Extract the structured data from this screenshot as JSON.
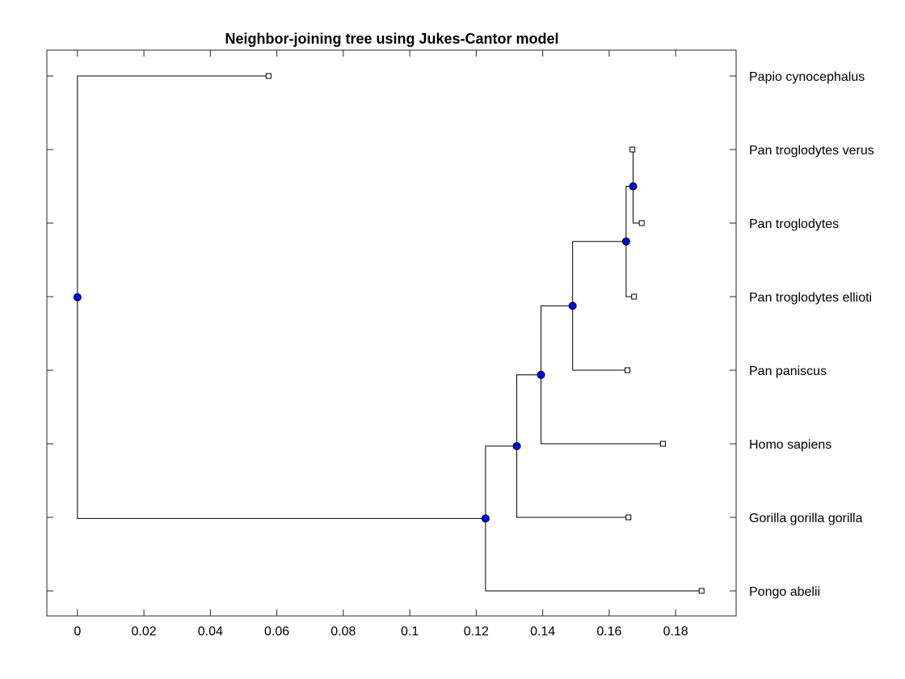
{
  "chart_data": {
    "type": "dendrogram",
    "title": "Neighbor-joining tree using Jukes-Cantor model",
    "xlabel": "",
    "ylabel": "",
    "xlim": [
      -0.0092,
      0.1982
    ],
    "x_ticks": [
      0,
      0.02,
      0.04,
      0.06,
      0.08,
      0.1,
      0.12,
      0.14,
      0.16,
      0.18
    ],
    "x_tick_labels": [
      "0",
      "0.02",
      "0.04",
      "0.06",
      "0.08",
      "0.1",
      "0.12",
      "0.14",
      "0.16",
      "0.18"
    ],
    "grid": false,
    "leaves": [
      {
        "name": "Papio cynocephalus",
        "x": 0.0575
      },
      {
        "name": "Pan troglodytes verus",
        "x": 0.167
      },
      {
        "name": "Pan troglodytes",
        "x": 0.1698
      },
      {
        "name": "Pan troglodytes ellioti",
        "x": 0.1675
      },
      {
        "name": "Pan paniscus",
        "x": 0.1655
      },
      {
        "name": "Homo sapiens",
        "x": 0.1762
      },
      {
        "name": "Gorilla gorilla gorilla",
        "x": 0.1658
      },
      {
        "name": "Pongo abelii",
        "x": 0.1878
      }
    ],
    "branch_nodes": [
      {
        "x": 0.1672,
        "children": [
          1,
          2
        ]
      },
      {
        "x": 0.1651,
        "children": [
          3,
          8
        ]
      },
      {
        "x": 0.149,
        "children": [
          9,
          4
        ]
      },
      {
        "x": 0.1395,
        "children": [
          10,
          5
        ]
      },
      {
        "x": 0.1322,
        "children": [
          11,
          6
        ]
      },
      {
        "x": 0.1228,
        "children": [
          12,
          7
        ]
      },
      {
        "x": 0.0,
        "children": [
          0,
          13
        ]
      }
    ],
    "colors": {
      "branch_node": "#0000ff",
      "leaf_node": "#ffffff",
      "line": "#000000"
    }
  }
}
